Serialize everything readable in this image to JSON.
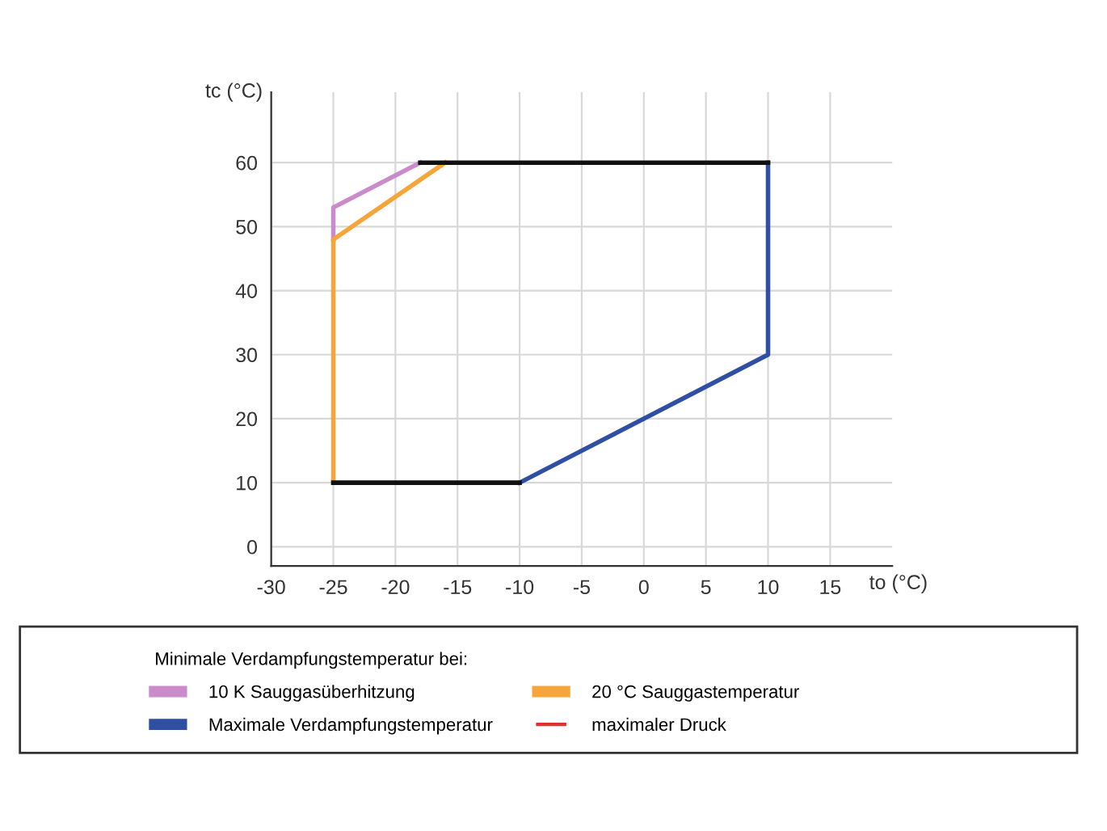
{
  "chart_data": {
    "type": "line",
    "xlabel": "to (°C)",
    "ylabel": "tc (°C)",
    "legend_title": "Minimale Verdampfungstemperatur bei:",
    "series": [
      {
        "name": "10 K Sauggasüberhitzung",
        "color": "#c98bc9",
        "x": [
          -25,
          -25,
          -18
        ],
        "values": [
          48,
          53,
          60
        ]
      },
      {
        "name": "20 °C Sauggastemperatur",
        "color": "#f5a53a",
        "x": [
          -25,
          -25,
          -16
        ],
        "values": [
          10,
          48,
          60
        ]
      },
      {
        "name": "Maximale Verdampfungstemperatur",
        "color": "#2e4fa3",
        "x": [
          -10,
          10,
          10
        ],
        "values": [
          10,
          30,
          60
        ]
      },
      {
        "name": "maximaler Druck",
        "color": "#e03030"
      },
      {
        "color": "#111111",
        "x": [
          -18,
          10
        ],
        "values": [
          60,
          60
        ]
      },
      {
        "color": "#111111",
        "x": [
          -25,
          -10
        ],
        "values": [
          10,
          10
        ]
      }
    ],
    "xlim": [
      -30,
      20
    ],
    "ylim": [
      -3,
      71
    ],
    "xticks": [
      -30,
      -25,
      -20,
      -15,
      -10,
      -5,
      0,
      5,
      10,
      15
    ],
    "yticks": [
      0,
      10,
      20,
      30,
      40,
      50,
      60
    ],
    "grid": true,
    "legend": "bottom",
    "marker": "none",
    "line_style": "solid"
  }
}
